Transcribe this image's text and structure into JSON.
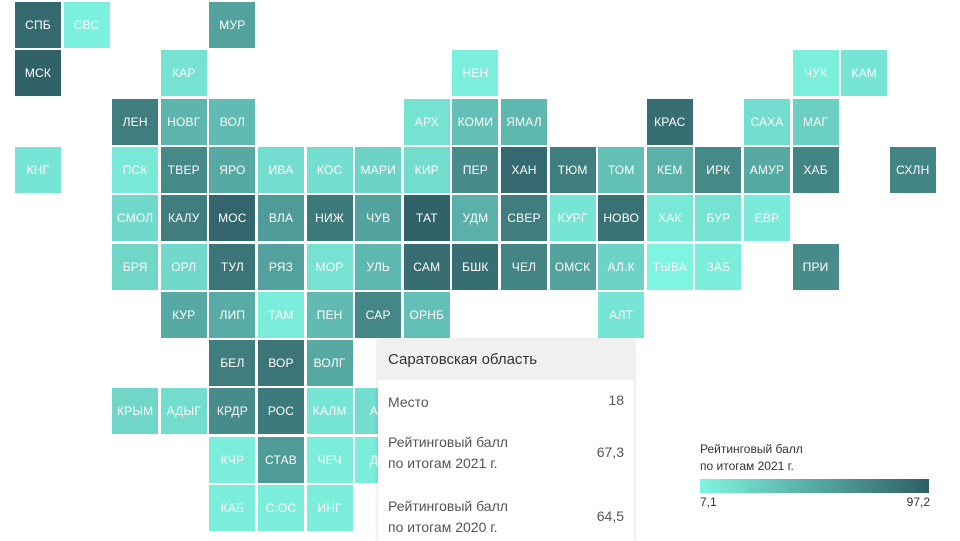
{
  "colors": {
    "low": "#7ff4e1",
    "high": "#2f5f66"
  },
  "regions": [
    {
      "label": "СПБ",
      "row": 0,
      "col": 0,
      "tone": 0.92
    },
    {
      "label": "СВС",
      "row": 0,
      "col": 1,
      "tone": 0.02
    },
    {
      "label": "МУР",
      "row": 0,
      "col": 4,
      "tone": 0.55
    },
    {
      "label": "МСК",
      "row": 1,
      "col": 0,
      "tone": 0.98
    },
    {
      "label": "КАР",
      "row": 1,
      "col": 3,
      "tone": 0.12
    },
    {
      "label": "НЕН",
      "row": 1,
      "col": 9,
      "tone": 0.04
    },
    {
      "label": "ЧУК",
      "row": 1,
      "col": 16,
      "tone": 0.04
    },
    {
      "label": "КАМ",
      "row": 1,
      "col": 17,
      "tone": 0.1
    },
    {
      "label": "ЛЕН",
      "row": 2,
      "col": 2,
      "tone": 0.8
    },
    {
      "label": "НОВГ",
      "row": 2,
      "col": 3,
      "tone": 0.42
    },
    {
      "label": "ВОЛ",
      "row": 2,
      "col": 4,
      "tone": 0.38
    },
    {
      "label": "АРХ",
      "row": 2,
      "col": 8,
      "tone": 0.12
    },
    {
      "label": "КОМИ",
      "row": 2,
      "col": 9,
      "tone": 0.35
    },
    {
      "label": "ЯМАЛ",
      "row": 2,
      "col": 10,
      "tone": 0.4
    },
    {
      "label": "КРАС",
      "row": 2,
      "col": 13,
      "tone": 0.9
    },
    {
      "label": "САХА",
      "row": 2,
      "col": 15,
      "tone": 0.15
    },
    {
      "label": "МАГ",
      "row": 2,
      "col": 16,
      "tone": 0.25
    },
    {
      "label": "КНГ",
      "row": 3,
      "col": 0,
      "tone": 0.1
    },
    {
      "label": "ПСК",
      "row": 3,
      "col": 2,
      "tone": 0.08
    },
    {
      "label": "ТВЕР",
      "row": 3,
      "col": 3,
      "tone": 0.72
    },
    {
      "label": "ЯРО",
      "row": 3,
      "col": 4,
      "tone": 0.5
    },
    {
      "label": "ИВА",
      "row": 3,
      "col": 5,
      "tone": 0.15
    },
    {
      "label": "КОС",
      "row": 3,
      "col": 6,
      "tone": 0.14
    },
    {
      "label": "МАРИ",
      "row": 3,
      "col": 7,
      "tone": 0.22
    },
    {
      "label": "КИР",
      "row": 3,
      "col": 8,
      "tone": 0.16
    },
    {
      "label": "ПЕР",
      "row": 3,
      "col": 9,
      "tone": 0.7
    },
    {
      "label": "ХАН",
      "row": 3,
      "col": 10,
      "tone": 0.92
    },
    {
      "label": "ТЮМ",
      "row": 3,
      "col": 11,
      "tone": 0.8
    },
    {
      "label": "ТОМ",
      "row": 3,
      "col": 12,
      "tone": 0.35
    },
    {
      "label": "КЕМ",
      "row": 3,
      "col": 13,
      "tone": 0.45
    },
    {
      "label": "ИРК",
      "row": 3,
      "col": 14,
      "tone": 0.72
    },
    {
      "label": "АМУР",
      "row": 3,
      "col": 15,
      "tone": 0.5
    },
    {
      "label": "ХАБ",
      "row": 3,
      "col": 16,
      "tone": 0.75
    },
    {
      "label": "СХЛН",
      "row": 3,
      "col": 18,
      "tone": 0.75
    },
    {
      "label": "СМОЛ",
      "row": 4,
      "col": 2,
      "tone": 0.18
    },
    {
      "label": "КАЛУ",
      "row": 4,
      "col": 3,
      "tone": 0.8
    },
    {
      "label": "МОС",
      "row": 4,
      "col": 4,
      "tone": 0.95
    },
    {
      "label": "ВЛА",
      "row": 4,
      "col": 5,
      "tone": 0.6
    },
    {
      "label": "НИЖ",
      "row": 4,
      "col": 6,
      "tone": 0.82
    },
    {
      "label": "ЧУВ",
      "row": 4,
      "col": 7,
      "tone": 0.55
    },
    {
      "label": "ТАТ",
      "row": 4,
      "col": 8,
      "tone": 0.98
    },
    {
      "label": "УДМ",
      "row": 4,
      "col": 9,
      "tone": 0.45
    },
    {
      "label": "СВЕР",
      "row": 4,
      "col": 10,
      "tone": 0.8
    },
    {
      "label": "КУРГ",
      "row": 4,
      "col": 11,
      "tone": 0.1
    },
    {
      "label": "НОВО",
      "row": 4,
      "col": 12,
      "tone": 0.88
    },
    {
      "label": "ХАК",
      "row": 4,
      "col": 13,
      "tone": 0.08
    },
    {
      "label": "БУР",
      "row": 4,
      "col": 14,
      "tone": 0.12
    },
    {
      "label": "ЕВР",
      "row": 4,
      "col": 15,
      "tone": 0.06
    },
    {
      "label": "БРЯ",
      "row": 5,
      "col": 2,
      "tone": 0.2
    },
    {
      "label": "ОРЛ",
      "row": 5,
      "col": 3,
      "tone": 0.18
    },
    {
      "label": "ТУЛ",
      "row": 5,
      "col": 4,
      "tone": 0.85
    },
    {
      "label": "РЯЗ",
      "row": 5,
      "col": 5,
      "tone": 0.55
    },
    {
      "label": "МОР",
      "row": 5,
      "col": 6,
      "tone": 0.12
    },
    {
      "label": "УЛЬ",
      "row": 5,
      "col": 7,
      "tone": 0.4
    },
    {
      "label": "САМ",
      "row": 5,
      "col": 8,
      "tone": 0.9
    },
    {
      "label": "БШК",
      "row": 5,
      "col": 9,
      "tone": 0.9
    },
    {
      "label": "ЧЕЛ",
      "row": 5,
      "col": 10,
      "tone": 0.75
    },
    {
      "label": "ОМСК",
      "row": 5,
      "col": 11,
      "tone": 0.55
    },
    {
      "label": "АЛ.К",
      "row": 5,
      "col": 12,
      "tone": 0.22
    },
    {
      "label": "ТЫВА",
      "row": 5,
      "col": 13,
      "tone": 0.0
    },
    {
      "label": "ЗАБ",
      "row": 5,
      "col": 14,
      "tone": 0.05
    },
    {
      "label": "ПРИ",
      "row": 5,
      "col": 16,
      "tone": 0.7
    },
    {
      "label": "КУР",
      "row": 6,
      "col": 3,
      "tone": 0.5
    },
    {
      "label": "ЛИП",
      "row": 6,
      "col": 4,
      "tone": 0.48
    },
    {
      "label": "ТАМ",
      "row": 6,
      "col": 5,
      "tone": 0.05
    },
    {
      "label": "ПЕН",
      "row": 6,
      "col": 6,
      "tone": 0.38
    },
    {
      "label": "САР",
      "row": 6,
      "col": 7,
      "tone": 0.73
    },
    {
      "label": "ОРНБ",
      "row": 6,
      "col": 8,
      "tone": 0.35
    },
    {
      "label": "АЛТ",
      "row": 6,
      "col": 12,
      "tone": 0.1
    },
    {
      "label": "БЕЛ",
      "row": 7,
      "col": 4,
      "tone": 0.8
    },
    {
      "label": "ВОР",
      "row": 7,
      "col": 5,
      "tone": 0.85
    },
    {
      "label": "ВОЛГ",
      "row": 7,
      "col": 6,
      "tone": 0.5
    },
    {
      "label": "КРЫМ",
      "row": 8,
      "col": 2,
      "tone": 0.2
    },
    {
      "label": "АДЫГ",
      "row": 8,
      "col": 3,
      "tone": 0.16
    },
    {
      "label": "КРДР",
      "row": 8,
      "col": 4,
      "tone": 0.7
    },
    {
      "label": "РОС",
      "row": 8,
      "col": 5,
      "tone": 0.82
    },
    {
      "label": "КАЛМ",
      "row": 8,
      "col": 6,
      "tone": 0.1
    },
    {
      "label": "АС",
      "row": 8,
      "col": 7,
      "tone": 0.15
    },
    {
      "label": "КЧР",
      "row": 9,
      "col": 4,
      "tone": 0.05
    },
    {
      "label": "СТАВ",
      "row": 9,
      "col": 5,
      "tone": 0.6
    },
    {
      "label": "ЧЕЧ",
      "row": 9,
      "col": 6,
      "tone": 0.05
    },
    {
      "label": "ДА",
      "row": 9,
      "col": 7,
      "tone": 0.05
    },
    {
      "label": "КАБ",
      "row": 10,
      "col": 4,
      "tone": 0.05
    },
    {
      "label": "С.ОС",
      "row": 10,
      "col": 5,
      "tone": 0.05
    },
    {
      "label": "ИНГ",
      "row": 10,
      "col": 6,
      "tone": 0.05
    }
  ],
  "tooltip": {
    "title": "Саратовская область",
    "rows": [
      {
        "label_lines": [
          "Место"
        ],
        "value": "18"
      },
      {
        "label_lines": [
          "Рейтинговый балл",
          "по итогам 2021 г."
        ],
        "value": "67,3"
      },
      {
        "label_lines": [
          "Рейтинговый балл",
          "по итогам 2020 г."
        ],
        "value": "64,5"
      }
    ]
  },
  "legend": {
    "title_lines": [
      "Рейтинговый балл",
      "по итогам 2021 г."
    ],
    "min": "7,1",
    "max": "97,2"
  }
}
